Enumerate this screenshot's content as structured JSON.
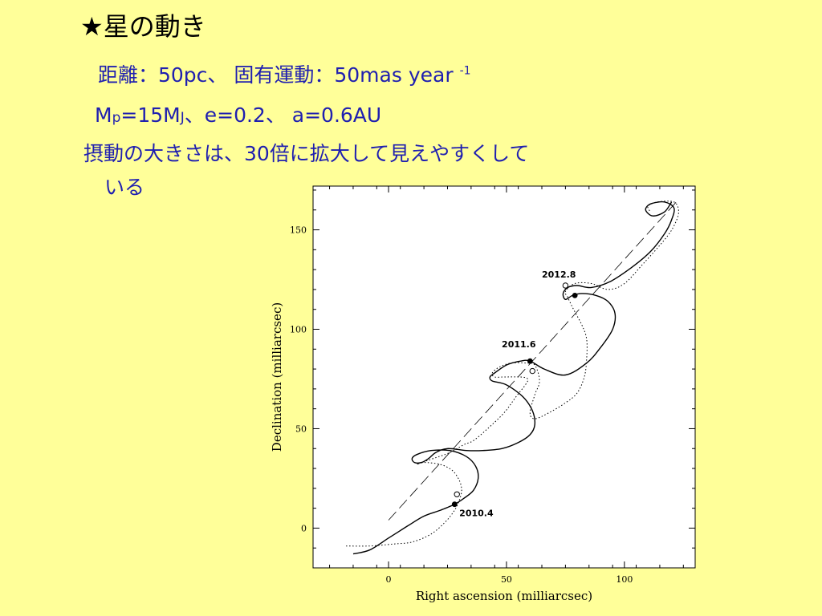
{
  "slide": {
    "title": "★星の動き",
    "line1": "距離：50pc、 固有運動：50mas year",
    "line1_sup": "-1",
    "line2_a": "M",
    "line2_b": "p",
    "line2_c": "=15M",
    "line2_d": "J",
    "line2_e": "、e=0.2、 a=0.6AU",
    "line3": "摂動の大きさは、30倍に拡大して見えやすくして",
    "line4": "いる"
  },
  "colors": {
    "background": "#ffff99",
    "text": "#1f1fb0"
  },
  "chart_data": {
    "type": "line",
    "xlabel": "Right ascension (milliarcsec)",
    "ylabel": "Declination (milliarcsec)",
    "xlim": [
      -32,
      130
    ],
    "ylim": [
      -20,
      172
    ],
    "xticks": [
      0,
      50,
      100
    ],
    "yticks": [
      0,
      50,
      100,
      150
    ],
    "grid": false,
    "series": [
      {
        "style": "dashed",
        "points": [
          [
            0,
            4
          ],
          [
            122,
            164
          ]
        ]
      },
      {
        "style": "solid",
        "points": [
          [
            -15,
            -13
          ],
          [
            -8,
            -11
          ],
          [
            0,
            -5
          ],
          [
            8,
            1
          ],
          [
            15,
            6
          ],
          [
            22,
            9
          ],
          [
            28,
            12
          ],
          [
            32,
            15
          ],
          [
            36,
            19
          ],
          [
            38,
            25
          ],
          [
            37,
            31
          ],
          [
            33,
            36
          ],
          [
            26,
            39
          ],
          [
            18,
            39
          ],
          [
            12,
            37
          ],
          [
            10,
            35
          ],
          [
            11,
            33
          ],
          [
            14,
            33
          ],
          [
            17,
            35
          ],
          [
            20,
            38
          ],
          [
            25,
            40
          ],
          [
            33,
            39
          ],
          [
            40,
            39
          ],
          [
            48,
            40
          ],
          [
            55,
            43
          ],
          [
            60,
            47
          ],
          [
            62,
            52
          ],
          [
            61,
            59
          ],
          [
            57,
            66
          ],
          [
            50,
            72
          ],
          [
            44,
            74
          ],
          [
            43,
            76
          ],
          [
            45,
            78
          ],
          [
            50,
            82
          ],
          [
            56,
            84
          ],
          [
            60,
            84
          ],
          [
            66,
            80
          ],
          [
            75,
            77
          ],
          [
            84,
            83
          ],
          [
            90,
            91
          ],
          [
            95,
            100
          ],
          [
            96,
            108
          ],
          [
            93,
            114
          ],
          [
            88,
            117
          ],
          [
            82,
            118
          ],
          [
            78,
            117
          ],
          [
            75,
            115
          ],
          [
            74,
            118
          ],
          [
            76,
            121
          ],
          [
            80,
            122
          ],
          [
            86,
            121
          ],
          [
            94,
            124
          ],
          [
            103,
            131
          ],
          [
            111,
            139
          ],
          [
            117,
            148
          ],
          [
            120,
            155
          ],
          [
            121,
            161
          ],
          [
            117,
            164
          ],
          [
            111,
            163
          ],
          [
            109,
            160
          ],
          [
            112,
            157
          ],
          [
            117,
            159
          ],
          [
            120,
            164
          ]
        ]
      },
      {
        "style": "dotted",
        "points": [
          [
            -18,
            -9
          ],
          [
            -8,
            -9
          ],
          [
            2,
            -8
          ],
          [
            10,
            -7
          ],
          [
            18,
            -3
          ],
          [
            24,
            3
          ],
          [
            28,
            9
          ],
          [
            30,
            14
          ],
          [
            31,
            19
          ],
          [
            30,
            24
          ],
          [
            27,
            29
          ],
          [
            22,
            32
          ],
          [
            15,
            33
          ],
          [
            12,
            32
          ],
          [
            14,
            33
          ],
          [
            19,
            35
          ],
          [
            26,
            38
          ],
          [
            32,
            42
          ],
          [
            36,
            44
          ],
          [
            42,
            50
          ],
          [
            49,
            58
          ],
          [
            54,
            66
          ],
          [
            58,
            72
          ],
          [
            59,
            75
          ],
          [
            56,
            76
          ],
          [
            49,
            76
          ],
          [
            45,
            76
          ],
          [
            44,
            78
          ],
          [
            47,
            81
          ],
          [
            52,
            83
          ],
          [
            58,
            83
          ],
          [
            62,
            82
          ],
          [
            64,
            74
          ],
          [
            62,
            67
          ],
          [
            60,
            58
          ],
          [
            62,
            55
          ],
          [
            68,
            58
          ],
          [
            75,
            63
          ],
          [
            80,
            68
          ],
          [
            83,
            76
          ],
          [
            84,
            85
          ],
          [
            84,
            95
          ],
          [
            82,
            102
          ],
          [
            78,
            111
          ],
          [
            76,
            116
          ],
          [
            75,
            119
          ],
          [
            79,
            123
          ],
          [
            86,
            123
          ],
          [
            93,
            120
          ],
          [
            100,
            123
          ],
          [
            108,
            133
          ],
          [
            117,
            145
          ],
          [
            121,
            152
          ],
          [
            123,
            159
          ],
          [
            121,
            164
          ],
          [
            114,
            164
          ],
          [
            110,
            162
          ],
          [
            111,
            159
          ]
        ]
      }
    ],
    "markers": [
      {
        "label": "2010.4",
        "filled": [
          28,
          12
        ],
        "open": [
          29,
          17
        ]
      },
      {
        "label": "2011.6",
        "filled": [
          60,
          84
        ],
        "open": [
          61,
          79
        ]
      },
      {
        "label": "2012.8",
        "filled": [
          79,
          117
        ],
        "open": [
          75,
          122
        ]
      }
    ]
  }
}
